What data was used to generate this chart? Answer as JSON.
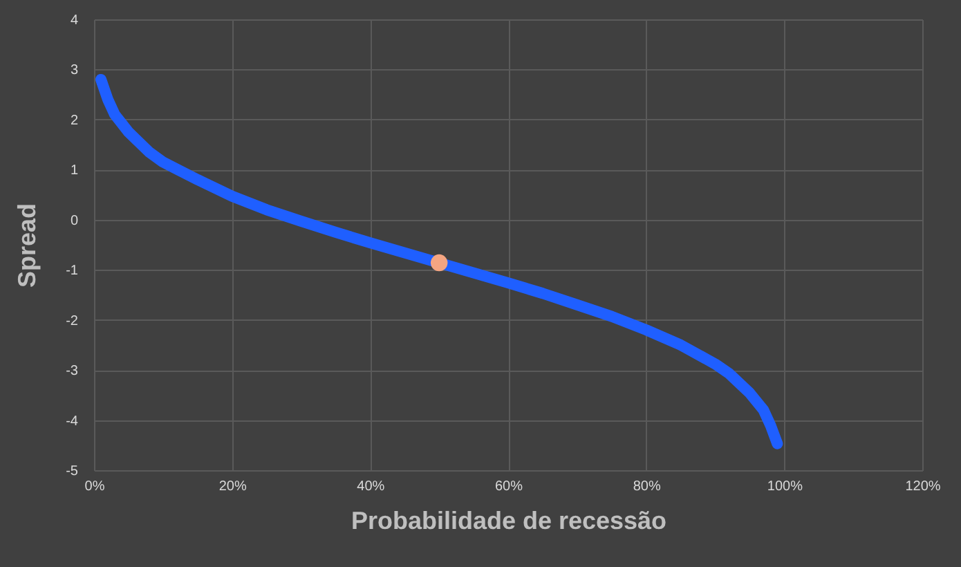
{
  "chart_data": {
    "type": "line",
    "xlabel": "Probabilidade  de recessão",
    "ylabel": "Spread",
    "xlim": [
      0,
      120
    ],
    "ylim": [
      -5,
      4
    ],
    "xticks": [
      {
        "value": 0,
        "label": "0%"
      },
      {
        "value": 20,
        "label": "20%"
      },
      {
        "value": 40,
        "label": "40%"
      },
      {
        "value": 60,
        "label": "60%"
      },
      {
        "value": 80,
        "label": "80%"
      },
      {
        "value": 100,
        "label": "100%"
      },
      {
        "value": 120,
        "label": "120%"
      }
    ],
    "yticks": [
      -5,
      -4,
      -3,
      -2,
      -1,
      0,
      1,
      2,
      3,
      4
    ],
    "grid": true,
    "series": [
      {
        "type": "line",
        "color": "#1f5fff",
        "x": [
          1,
          2,
          3,
          5,
          8,
          10,
          15,
          20,
          25,
          30,
          35,
          40,
          45,
          50,
          55,
          60,
          65,
          70,
          75,
          80,
          85,
          90,
          92,
          95,
          97,
          98,
          99
        ],
        "values": [
          2.8,
          2.4,
          2.1,
          1.75,
          1.35,
          1.15,
          0.8,
          0.47,
          0.2,
          -0.03,
          -0.25,
          -0.46,
          -0.66,
          -0.86,
          -1.06,
          -1.26,
          -1.47,
          -1.7,
          -1.93,
          -2.2,
          -2.5,
          -2.88,
          -3.07,
          -3.46,
          -3.8,
          -4.1,
          -4.47
        ]
      },
      {
        "type": "scatter",
        "color": "#f4a582",
        "x": [
          50
        ],
        "values": [
          -0.86
        ]
      }
    ]
  }
}
